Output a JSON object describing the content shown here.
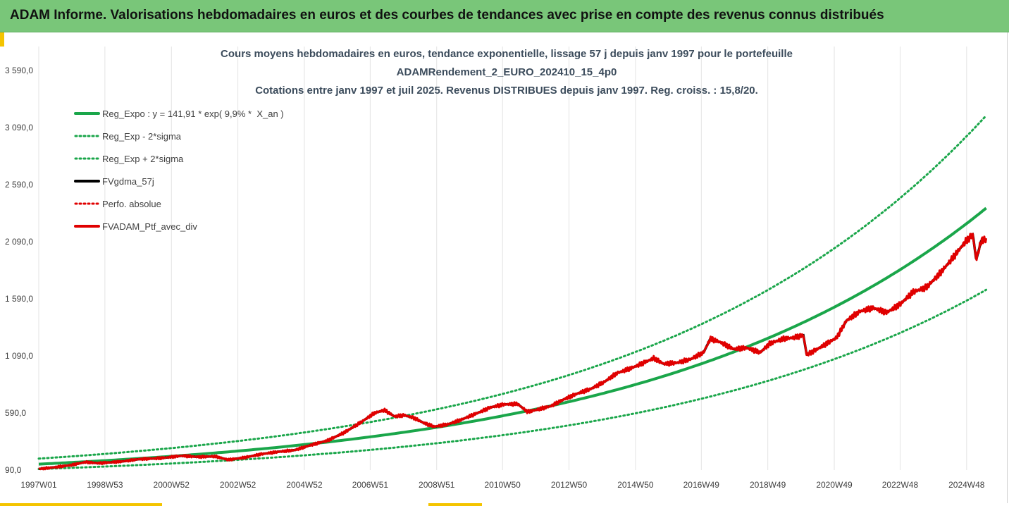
{
  "banner": {
    "title": "ADAM Informe. Valorisations hebdomadaires en euros et des courbes de tendances avec prise en compte des revenus connus distribués"
  },
  "colors": {
    "banner_bg": "#79c679",
    "accent": "#f4c400",
    "trend": "#1aa64a",
    "mm": "#000000",
    "perf": "#e00000"
  },
  "chart_data": {
    "type": "line",
    "title_lines": [
      "Cours moyens hebdomadaires en euros, tendance exponentielle, lissage 57 j depuis janv 1997 pour le portefeuille",
      "ADAMRendement_2_EURO_202410_15_4p0",
      "Cotations entre janv 1997 et juil 2025. Revenus DISTRIBUES depuis janv 1997. Reg. croiss. : 15,8/20."
    ],
    "xlabel": "",
    "ylabel": "",
    "x_range": [
      1997.0,
      2025.55
    ],
    "x_ticks": [
      {
        "label": "1997W01",
        "x": 1997.0
      },
      {
        "label": "1998W53",
        "x": 1998.99
      },
      {
        "label": "2000W52",
        "x": 2000.99
      },
      {
        "label": "2002W52",
        "x": 2002.99
      },
      {
        "label": "2004W52",
        "x": 2004.99
      },
      {
        "label": "2006W51",
        "x": 2006.97
      },
      {
        "label": "2008W51",
        "x": 2008.97
      },
      {
        "label": "2010W50",
        "x": 2010.95
      },
      {
        "label": "2012W50",
        "x": 2012.95
      },
      {
        "label": "2014W50",
        "x": 2014.95
      },
      {
        "label": "2016W49",
        "x": 2016.93
      },
      {
        "label": "2018W49",
        "x": 2018.93
      },
      {
        "label": "2020W49",
        "x": 2020.93
      },
      {
        "label": "2022W48",
        "x": 2022.91
      },
      {
        "label": "2024W48",
        "x": 2024.91
      }
    ],
    "y_ticks": [
      90,
      590,
      1090,
      1590,
      2090,
      2590,
      3090,
      3590
    ],
    "y_tick_labels": [
      "90,0",
      "590,0",
      "1 090,0",
      "1 590,0",
      "2 090,0",
      "2 590,0",
      "3 090,0",
      "3 590,0"
    ],
    "ylim": [
      90,
      3590
    ],
    "grid": "vertical",
    "legend_position": "top-left",
    "trend": {
      "a": 141.91,
      "rate": 0.099,
      "x0": 1997.0
    },
    "series": [
      {
        "name": "Reg_Expo : y = 141,91 * exp( 9,9% *  X_an )",
        "style": "solid-green",
        "factor": 1.0
      },
      {
        "name": "Reg_Exp - 2*sigma",
        "style": "dotted-green",
        "factor": 0.7
      },
      {
        "name": "Reg_Exp + 2*sigma",
        "style": "dotted-green",
        "factor": 1.34
      },
      {
        "name": "FVgdma_57j",
        "style": "solid-black"
      },
      {
        "name": "Perfo. absolue",
        "style": "dotted-red"
      },
      {
        "name": "FVADAM_Ptf_avec_div",
        "style": "solid-red",
        "points": [
          [
            1997.0,
            100
          ],
          [
            1997.5,
            115
          ],
          [
            1998.0,
            135
          ],
          [
            1998.4,
            160
          ],
          [
            1998.8,
            150
          ],
          [
            1999.5,
            165
          ],
          [
            2000.0,
            185
          ],
          [
            2000.7,
            195
          ],
          [
            2001.3,
            215
          ],
          [
            2001.8,
            205
          ],
          [
            2002.3,
            210
          ],
          [
            2002.7,
            180
          ],
          [
            2003.2,
            200
          ],
          [
            2003.7,
            230
          ],
          [
            2004.2,
            250
          ],
          [
            2004.7,
            265
          ],
          [
            2005.2,
            310
          ],
          [
            2005.7,
            350
          ],
          [
            2006.2,
            420
          ],
          [
            2006.7,
            510
          ],
          [
            2007.1,
            590
          ],
          [
            2007.4,
            615
          ],
          [
            2007.7,
            560
          ],
          [
            2008.0,
            570
          ],
          [
            2008.3,
            545
          ],
          [
            2008.6,
            500
          ],
          [
            2008.9,
            470
          ],
          [
            2009.3,
            490
          ],
          [
            2009.7,
            530
          ],
          [
            2010.2,
            590
          ],
          [
            2010.6,
            640
          ],
          [
            2011.0,
            665
          ],
          [
            2011.4,
            670
          ],
          [
            2011.7,
            600
          ],
          [
            2012.0,
            620
          ],
          [
            2012.4,
            650
          ],
          [
            2012.8,
            710
          ],
          [
            2013.2,
            760
          ],
          [
            2013.6,
            800
          ],
          [
            2014.0,
            860
          ],
          [
            2014.4,
            940
          ],
          [
            2014.8,
            980
          ],
          [
            2015.2,
            1030
          ],
          [
            2015.5,
            1070
          ],
          [
            2015.8,
            1020
          ],
          [
            2016.2,
            1030
          ],
          [
            2016.6,
            1060
          ],
          [
            2017.0,
            1120
          ],
          [
            2017.2,
            1240
          ],
          [
            2017.5,
            1210
          ],
          [
            2017.9,
            1150
          ],
          [
            2018.3,
            1160
          ],
          [
            2018.7,
            1120
          ],
          [
            2019.0,
            1200
          ],
          [
            2019.4,
            1240
          ],
          [
            2019.7,
            1250
          ],
          [
            2020.0,
            1270
          ],
          [
            2020.1,
            1100
          ],
          [
            2020.3,
            1130
          ],
          [
            2020.6,
            1180
          ],
          [
            2021.0,
            1250
          ],
          [
            2021.3,
            1400
          ],
          [
            2021.7,
            1480
          ],
          [
            2022.1,
            1510
          ],
          [
            2022.5,
            1470
          ],
          [
            2022.9,
            1540
          ],
          [
            2023.3,
            1650
          ],
          [
            2023.7,
            1690
          ],
          [
            2024.1,
            1810
          ],
          [
            2024.5,
            1950
          ],
          [
            2024.9,
            2100
          ],
          [
            2025.1,
            2150
          ],
          [
            2025.2,
            1930
          ],
          [
            2025.35,
            2100
          ],
          [
            2025.5,
            2110
          ]
        ]
      }
    ]
  }
}
